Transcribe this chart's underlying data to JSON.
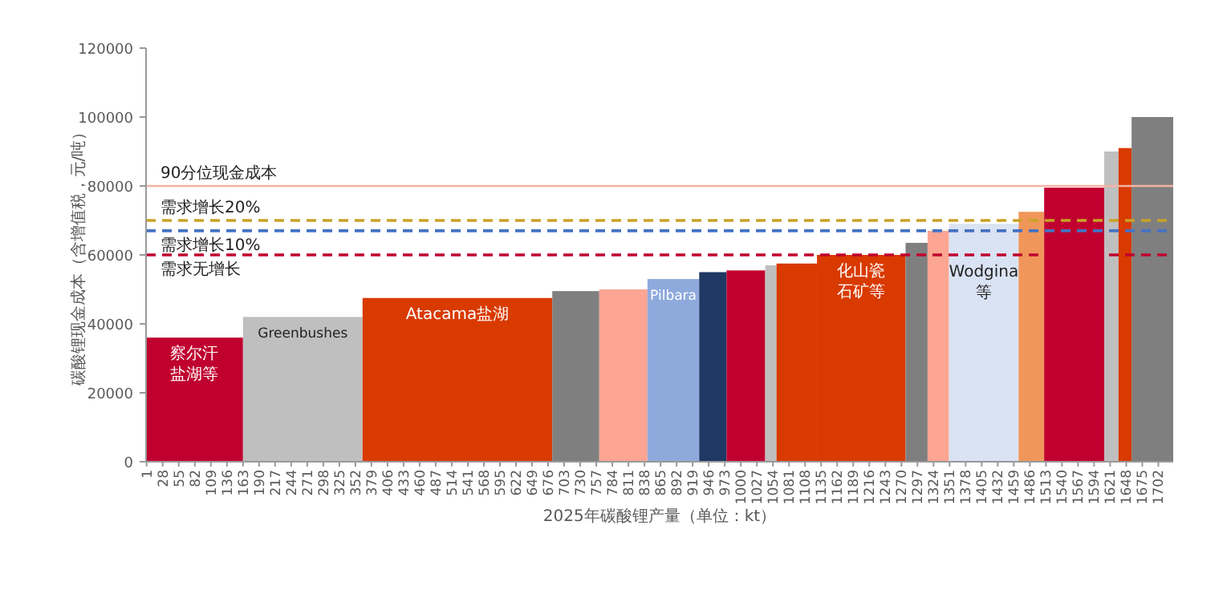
{
  "chart_data": {
    "type": "bar",
    "ylabel": "碳酸锂现金成本（含增值税，元/吨）",
    "xlabel": "2025年碳酸锂产量（单位：kt）",
    "x": [
      81.5,
      263.5,
      523.5,
      722.5,
      802.5,
      886.5,
      953,
      1008.5,
      1050.5,
      1094,
      1202.5,
      1295.5,
      1332,
      1408.5,
      1488.5,
      1560.5,
      1623,
      1646,
      1692
    ],
    "values": [
      36000,
      42000,
      47500,
      49500,
      50000,
      53000,
      55000,
      55500,
      57000,
      57500,
      60000,
      63500,
      67000,
      69000,
      72500,
      79500,
      90000,
      91000,
      100000
    ],
    "colors": [
      "#c0002f",
      "#bfbfbf",
      "#d93a00",
      "#7f7f7f",
      "#fba592",
      "#8eaadc",
      "#1f3864",
      "#c0002f",
      "#bfbfbf",
      "#d93a00",
      "#d93a00",
      "#7f7f7f",
      "#fba592",
      "#dae3f3",
      "#f0965a",
      "#c0002f",
      "#bfbfbf",
      "#d93a00",
      "#7f7f7f"
    ],
    "xlim": [
      0,
      1727
    ],
    "xticks": [
      1,
      28,
      55,
      82,
      109,
      136,
      163,
      190,
      217,
      244,
      271,
      298,
      325,
      352,
      379,
      406,
      433,
      460,
      487,
      514,
      541,
      568,
      595,
      622,
      649,
      676,
      703,
      730,
      757,
      784,
      811,
      838,
      865,
      892,
      919,
      946,
      973,
      1000,
      1027,
      1054,
      1081,
      1108,
      1135,
      1162,
      1189,
      1216,
      1243,
      1270,
      1297,
      1324,
      1351,
      1378,
      1405,
      1432,
      1459,
      1486,
      1513,
      1540,
      1567,
      1594,
      1621,
      1648,
      1675,
      1702
    ],
    "ylim": [
      0,
      120000
    ],
    "yticks": [
      0,
      20000,
      40000,
      60000,
      80000,
      100000,
      120000
    ],
    "ref_lines": [
      {
        "axis": "y",
        "value": 80000,
        "label": "90分位现金成本",
        "color": "#f4b3a5",
        "line_style": "solid"
      },
      {
        "axis": "y",
        "value": 70000,
        "label": "需求增长20%",
        "color": "#c9a227",
        "line_style": "dashed"
      },
      {
        "axis": "y",
        "value": 67000,
        "label": "需求增长10%",
        "color": "#4472c4",
        "line_style": "dashed"
      },
      {
        "axis": "y",
        "value": 60000,
        "label": "需求无增长",
        "color": "#c0002f",
        "line_style": "dashed"
      }
    ],
    "annotations": [
      {
        "text": "察尔汗盐湖等",
        "x": 81.5,
        "y": 36000
      },
      {
        "text": "Greenbushes",
        "x": 263.5,
        "y": 42000
      },
      {
        "text": "Atacama盐湖",
        "x": 523.5,
        "y": 47500
      },
      {
        "text": "Pilbara",
        "x": 886.5,
        "y": 53000
      },
      {
        "text": "化山瓷石矿等",
        "x": 1202.5,
        "y": 60000
      },
      {
        "text": "Wodgina等",
        "x": 1408.5,
        "y": 69000
      }
    ]
  }
}
